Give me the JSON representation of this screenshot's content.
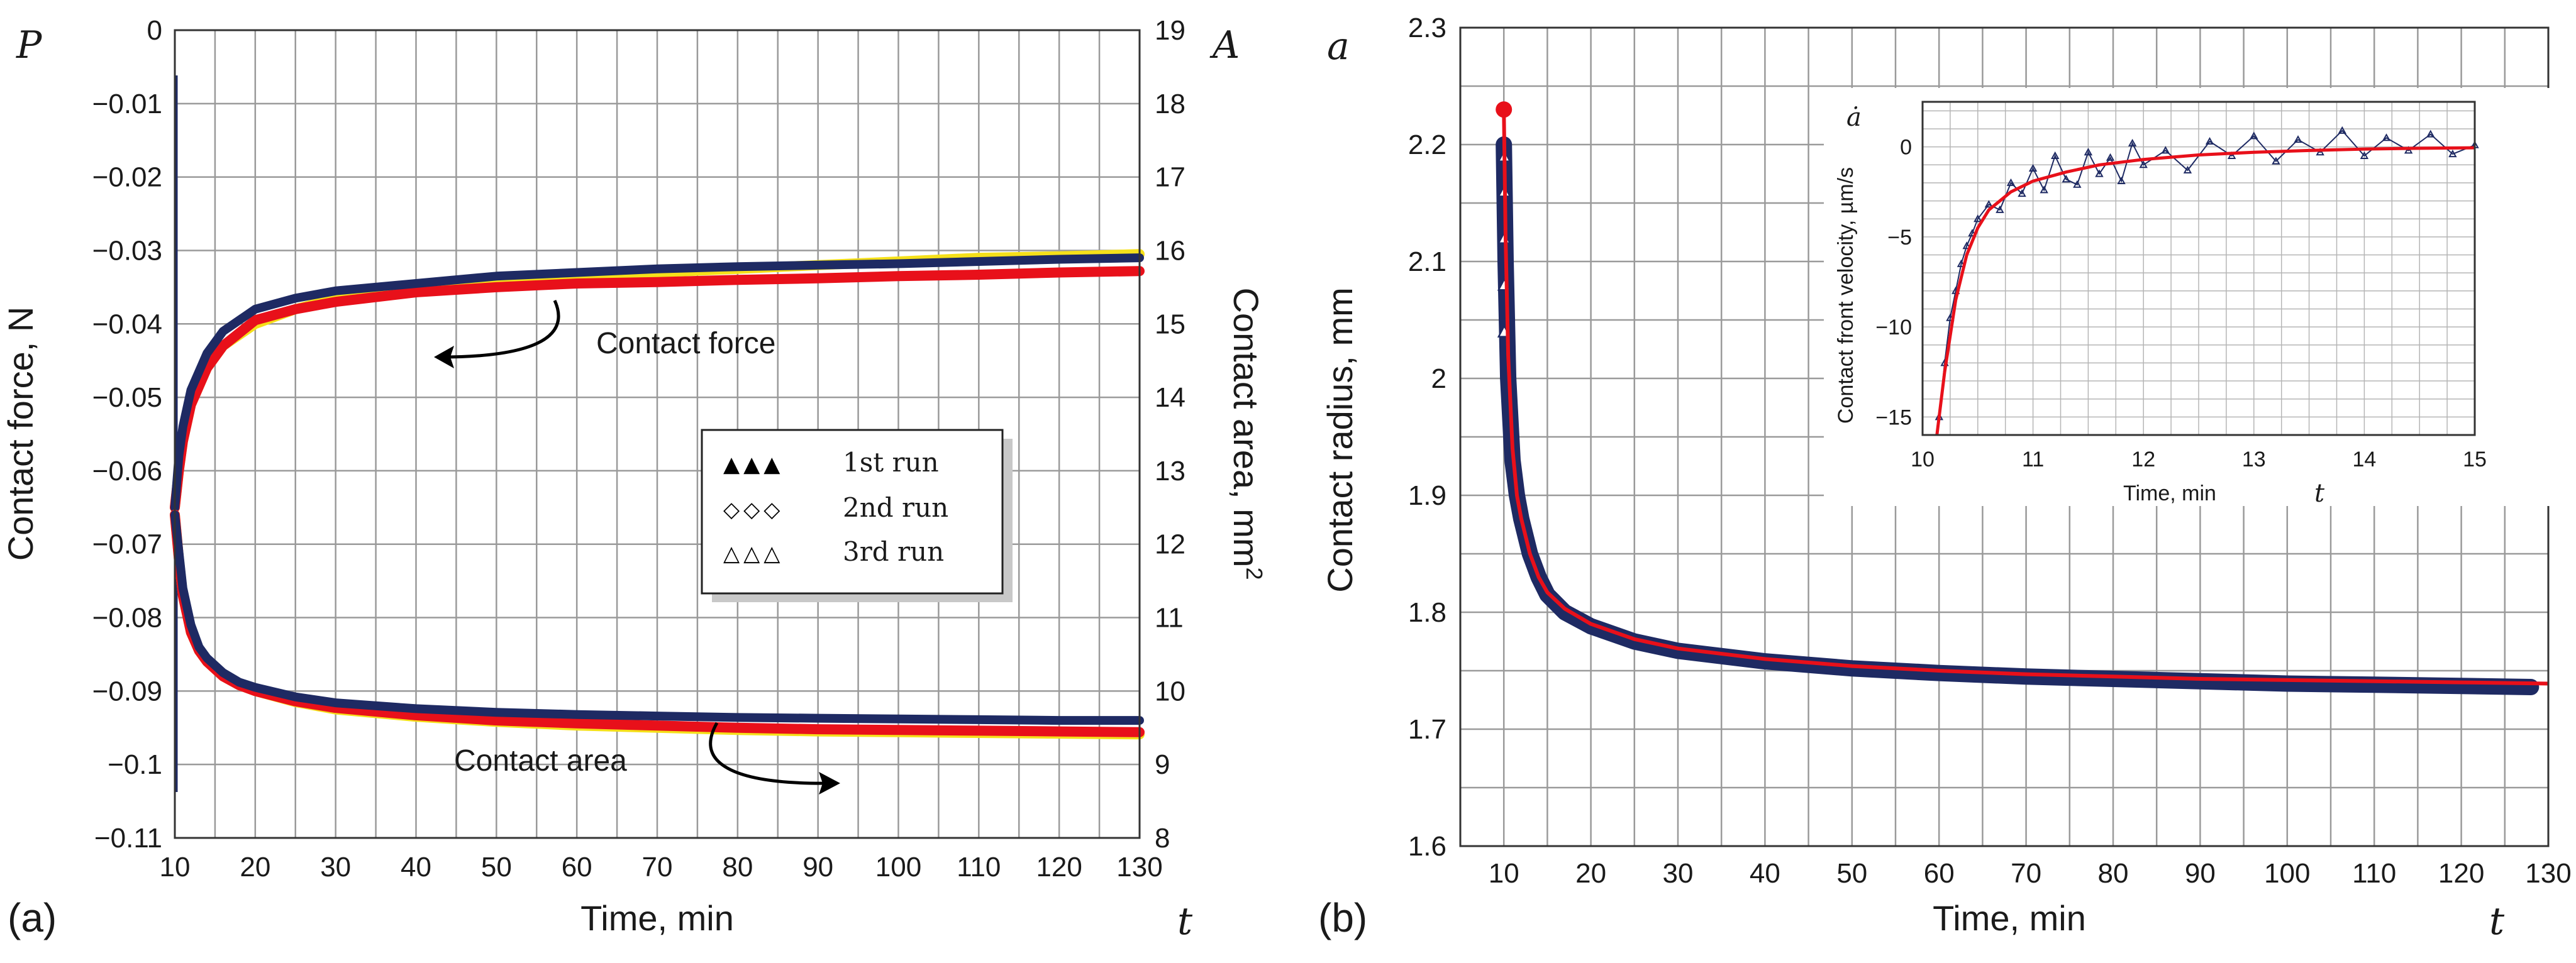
{
  "colors": {
    "run1": "#f5e01a",
    "run2": "#e8101a",
    "run3": "#1e2a63",
    "fit": "#e8101a",
    "grid": "#9a9a9a"
  },
  "chart_data": [
    {
      "type": "line",
      "panel_label": "(a)",
      "xlabel": "Time, min",
      "x_symbol": "t",
      "ylabel_left": "Contact force, N",
      "y_symbol_left": "P",
      "ylabel_right": "Contact area, mm",
      "ylabel_right_sup": "2",
      "y_symbol_right": "A",
      "xlim": [
        10,
        130
      ],
      "ylim_left": [
        -0.11,
        0
      ],
      "ylim_right": [
        8,
        19
      ],
      "grid": true,
      "x_ticks": [
        "10",
        "20",
        "30",
        "40",
        "50",
        "60",
        "70",
        "80",
        "90",
        "100",
        "110",
        "120",
        "130"
      ],
      "y_ticks_left": [
        "0",
        "−0.01",
        "−0.02",
        "−0.03",
        "−0.04",
        "−0.05",
        "−0.06",
        "−0.07",
        "−0.08",
        "−0.09",
        "−0.1",
        "−0.11"
      ],
      "y_ticks_right": [
        "19",
        "18",
        "17",
        "16",
        "15",
        "14",
        "13",
        "12",
        "11",
        "10",
        "9",
        "8"
      ],
      "legend": {
        "position": "center-right",
        "entries": [
          {
            "marker": "▲▲▲",
            "label": "1st run"
          },
          {
            "marker": "◇◇◇",
            "label": "2nd run"
          },
          {
            "marker": "△△△",
            "label": "3rd run"
          }
        ]
      },
      "annotations": {
        "force": "Contact force",
        "area": "Contact area"
      },
      "series": [
        {
          "label_key": "1st run",
          "quantity": "force",
          "axis": "left",
          "x": [
            10,
            10.5,
            11,
            12,
            14,
            16,
            20,
            25,
            30,
            40,
            50,
            60,
            70,
            80,
            90,
            100,
            110,
            120,
            130
          ],
          "y": [
            -0.065,
            -0.06,
            -0.056,
            -0.051,
            -0.046,
            -0.043,
            -0.04,
            -0.038,
            -0.0365,
            -0.035,
            -0.034,
            -0.0335,
            -0.033,
            -0.0325,
            -0.032,
            -0.0315,
            -0.031,
            -0.0308,
            -0.0305
          ]
        },
        {
          "label_key": "2nd run",
          "quantity": "force",
          "axis": "left",
          "x": [
            10,
            10.5,
            11,
            12,
            14,
            16,
            20,
            25,
            30,
            40,
            50,
            60,
            70,
            80,
            90,
            100,
            110,
            120,
            130
          ],
          "y": [
            -0.065,
            -0.06,
            -0.056,
            -0.051,
            -0.046,
            -0.043,
            -0.0395,
            -0.038,
            -0.037,
            -0.0357,
            -0.035,
            -0.0345,
            -0.0343,
            -0.034,
            -0.0338,
            -0.0335,
            -0.0333,
            -0.033,
            -0.0328
          ]
        },
        {
          "label_key": "3rd run",
          "quantity": "force",
          "axis": "left",
          "x": [
            10,
            10.5,
            11,
            12,
            14,
            16,
            20,
            25,
            30,
            40,
            50,
            60,
            70,
            80,
            90,
            100,
            110,
            120,
            130
          ],
          "y": [
            -0.065,
            -0.058,
            -0.054,
            -0.049,
            -0.044,
            -0.041,
            -0.038,
            -0.0365,
            -0.0355,
            -0.0345,
            -0.0335,
            -0.033,
            -0.0325,
            -0.0322,
            -0.032,
            -0.0318,
            -0.0315,
            -0.0312,
            -0.031
          ]
        },
        {
          "label_key": "1st run",
          "quantity": "area",
          "axis": "right",
          "x": [
            10,
            10.5,
            11,
            12,
            13,
            14,
            16,
            18,
            20,
            25,
            30,
            40,
            50,
            60,
            70,
            80,
            90,
            100,
            110,
            120,
            130
          ],
          "y": [
            12.4,
            11.8,
            11.3,
            10.8,
            10.55,
            10.4,
            10.2,
            10.08,
            10.0,
            9.85,
            9.75,
            9.65,
            9.58,
            9.53,
            9.5,
            9.47,
            9.45,
            9.44,
            9.43,
            9.42,
            9.41
          ]
        },
        {
          "label_key": "2nd run",
          "quantity": "area",
          "axis": "right",
          "x": [
            10,
            10.5,
            11,
            12,
            13,
            14,
            16,
            18,
            20,
            25,
            30,
            40,
            50,
            60,
            70,
            80,
            90,
            100,
            110,
            120,
            130
          ],
          "y": [
            12.4,
            11.8,
            11.3,
            10.8,
            10.55,
            10.4,
            10.2,
            10.08,
            10.0,
            9.86,
            9.77,
            9.67,
            9.6,
            9.56,
            9.53,
            9.5,
            9.48,
            9.47,
            9.46,
            9.45,
            9.44
          ]
        },
        {
          "label_key": "3rd run",
          "quantity": "area",
          "axis": "right",
          "x": [
            10,
            10.5,
            11,
            12,
            13,
            14,
            16,
            18,
            20,
            25,
            30,
            40,
            50,
            60,
            70,
            80,
            90,
            100,
            110,
            120,
            130
          ],
          "y": [
            12.4,
            11.9,
            11.4,
            10.9,
            10.6,
            10.45,
            10.25,
            10.12,
            10.05,
            9.92,
            9.84,
            9.76,
            9.71,
            9.68,
            9.66,
            9.64,
            9.63,
            9.62,
            9.61,
            9.6,
            9.6
          ]
        }
      ]
    },
    {
      "type": "line",
      "panel_label": "(b)",
      "xlabel": "Time, min",
      "x_symbol": "t",
      "ylabel": "Contact radius,  mm",
      "y_symbol": "a",
      "xlim": [
        5,
        130
      ],
      "ylim": [
        1.6,
        2.3
      ],
      "grid": true,
      "x_ticks": [
        "10",
        "20",
        "30",
        "40",
        "50",
        "60",
        "70",
        "80",
        "90",
        "100",
        "110",
        "120",
        "130"
      ],
      "y_ticks": [
        "2.3",
        "2.2",
        "2.1",
        "2",
        "1.9",
        "1.8",
        "1.7",
        "1.6"
      ],
      "series": [
        {
          "kind": "data",
          "x": [
            10,
            10.2,
            10.5,
            11,
            11.5,
            12,
            13,
            14,
            15,
            17,
            20,
            25,
            30,
            40,
            50,
            60,
            70,
            80,
            90,
            100,
            110,
            120,
            128
          ],
          "y": [
            2.2,
            2.1,
            2.0,
            1.93,
            1.9,
            1.88,
            1.85,
            1.83,
            1.815,
            1.8,
            1.788,
            1.775,
            1.767,
            1.758,
            1.752,
            1.748,
            1.745,
            1.743,
            1.741,
            1.739,
            1.738,
            1.737,
            1.736
          ]
        },
        {
          "kind": "fit",
          "x": [
            10,
            10.2,
            10.5,
            11,
            11.5,
            12,
            13,
            14,
            15,
            17,
            20,
            25,
            30,
            40,
            50,
            60,
            70,
            80,
            90,
            100,
            110,
            120,
            130
          ],
          "y": [
            2.23,
            2.12,
            2.02,
            1.94,
            1.9,
            1.88,
            1.85,
            1.83,
            1.817,
            1.803,
            1.79,
            1.777,
            1.769,
            1.76,
            1.754,
            1.75,
            1.747,
            1.745,
            1.743,
            1.742,
            1.741,
            1.74,
            1.739
          ]
        },
        {
          "kind": "start-point",
          "x": [
            10
          ],
          "y": [
            2.23
          ]
        }
      ],
      "inset": {
        "xlabel": "Time, min",
        "x_symbol": "t",
        "ylabel": "Contact front velocity,  µm/s",
        "y_symbol": "ȧ",
        "xlim": [
          10,
          15
        ],
        "ylim": [
          -16,
          2.5
        ],
        "x_ticks": [
          "10",
          "11",
          "12",
          "13",
          "14",
          "15"
        ],
        "y_ticks": [
          "0",
          "−5",
          "−10",
          "−15"
        ],
        "fit": {
          "x": [
            10.13,
            10.2,
            10.3,
            10.4,
            10.5,
            10.6,
            10.8,
            11,
            11.3,
            11.6,
            12,
            12.5,
            13,
            13.5,
            14,
            14.5,
            15
          ],
          "y": [
            -16,
            -12.5,
            -8.5,
            -6.0,
            -4.5,
            -3.5,
            -2.5,
            -1.9,
            -1.4,
            -1.0,
            -0.7,
            -0.45,
            -0.3,
            -0.2,
            -0.12,
            -0.08,
            -0.05
          ]
        },
        "points": {
          "x": [
            10.15,
            10.2,
            10.25,
            10.3,
            10.35,
            10.4,
            10.45,
            10.5,
            10.6,
            10.7,
            10.8,
            10.9,
            11.0,
            11.1,
            11.2,
            11.3,
            11.4,
            11.5,
            11.6,
            11.7,
            11.8,
            11.9,
            12.0,
            12.2,
            12.4,
            12.6,
            12.8,
            13.0,
            13.2,
            13.4,
            13.6,
            13.8,
            14.0,
            14.2,
            14.4,
            14.6,
            14.8,
            15.0
          ],
          "y": [
            -15,
            -12,
            -9.5,
            -8,
            -6.5,
            -5.5,
            -4.8,
            -4.0,
            -3.2,
            -3.5,
            -2.0,
            -2.6,
            -1.2,
            -2.4,
            -0.5,
            -1.8,
            -2.1,
            -0.3,
            -1.5,
            -0.6,
            -1.9,
            0.2,
            -1.0,
            -0.2,
            -1.3,
            0.3,
            -0.5,
            0.6,
            -0.8,
            0.4,
            -0.3,
            0.9,
            -0.5,
            0.5,
            -0.2,
            0.7,
            -0.4,
            0.1
          ]
        }
      }
    }
  ]
}
